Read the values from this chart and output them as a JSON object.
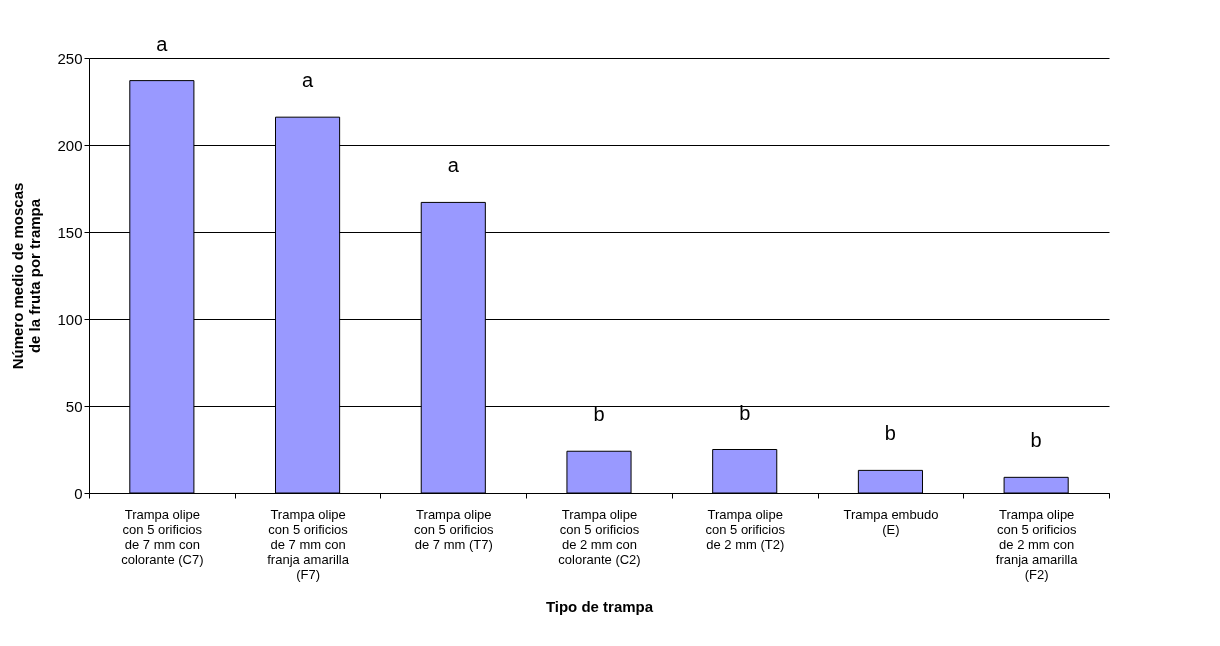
{
  "chart_data": {
    "type": "bar",
    "xlabel": "Tipo de trampa",
    "ylabel": "Número medio de moscas de la fruta por trampa",
    "categories": [
      "Trampa olipe con 5 orificios de 7 mm con colorante (C7)",
      "Trampa olipe con 5 orificios de 7 mm con franja amarilla (F7)",
      "Trampa olipe con 5 orificios de 7 mm (T7)",
      "Trampa olipe con 5 orificios de 2 mm con colorante (C2)",
      "Trampa olipe con 5 orificios de 2 mm (T2)",
      "Trampa embudo (E)",
      "Trampa olipe con 5 orificios de 2 mm con franja amarilla (F2)"
    ],
    "values": [
      237,
      216,
      167,
      24,
      25,
      13,
      9
    ],
    "color": "#9999ff",
    "ylim": [
      0,
      250
    ],
    "yticks": [
      0,
      50,
      100,
      150,
      200,
      250
    ],
    "grid": "y",
    "annotations": [
      {
        "text": "a",
        "x": "Trampa olipe con 5 orificios de 7 mm con colorante (C7)",
        "y": 237
      },
      {
        "text": "a",
        "x": "Trampa olipe con 5 orificios de 7 mm con franja amarilla (F7)",
        "y": 216
      },
      {
        "text": "a",
        "x": "Trampa olipe con 5 orificios de 7 mm (T7)",
        "y": 167
      },
      {
        "text": "b",
        "x": "Trampa olipe con 5 orificios de 2 mm con colorante (C2)",
        "y": 24
      },
      {
        "text": "b",
        "x": "Trampa olipe con 5 orificios de 2 mm (T2)",
        "y": 25
      },
      {
        "text": "b",
        "x": "Trampa embudo (E)",
        "y": 13
      },
      {
        "text": "b",
        "x": "Trampa olipe con 5 orificios de 2 mm con franja amarilla (F2)",
        "y": 9
      }
    ]
  }
}
